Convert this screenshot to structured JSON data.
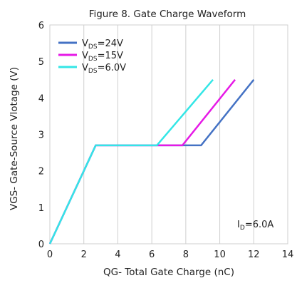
{
  "chart_data": {
    "type": "line",
    "title": "Figure 8. Gate Charge Waveform",
    "xlabel": "QG- Total Gate Charge (nC)",
    "ylabel": "VGS- Gate-Source Vlotage (V)",
    "xlim": [
      0,
      14
    ],
    "ylim": [
      0,
      6
    ],
    "xticks": [
      0,
      2,
      4,
      6,
      8,
      10,
      12,
      14
    ],
    "yticks": [
      0,
      1,
      2,
      3,
      4,
      5,
      6
    ],
    "grid": "vertical",
    "legend_position": "top-left",
    "series": [
      {
        "name_main": "V",
        "name_sub": "DS",
        "name_tail": "=24V",
        "color": "#4472c4",
        "x": [
          0,
          2.7,
          8.9,
          12.0
        ],
        "y": [
          0,
          2.7,
          2.7,
          4.5
        ]
      },
      {
        "name_main": "V",
        "name_sub": "DS",
        "name_tail": "=15V",
        "color": "#e619e6",
        "x": [
          0,
          2.7,
          7.8,
          10.9
        ],
        "y": [
          0,
          2.7,
          2.7,
          4.5
        ]
      },
      {
        "name_main": "V",
        "name_sub": "DS",
        "name_tail": "=6.0V",
        "color": "#33e6e6",
        "x": [
          0,
          2.7,
          6.3,
          9.6
        ],
        "y": [
          0,
          2.7,
          2.7,
          4.5
        ]
      }
    ],
    "annotation": {
      "main": "I",
      "sub": "D",
      "tail": "=6.0A",
      "at": [
        12.1,
        0.45
      ]
    }
  }
}
